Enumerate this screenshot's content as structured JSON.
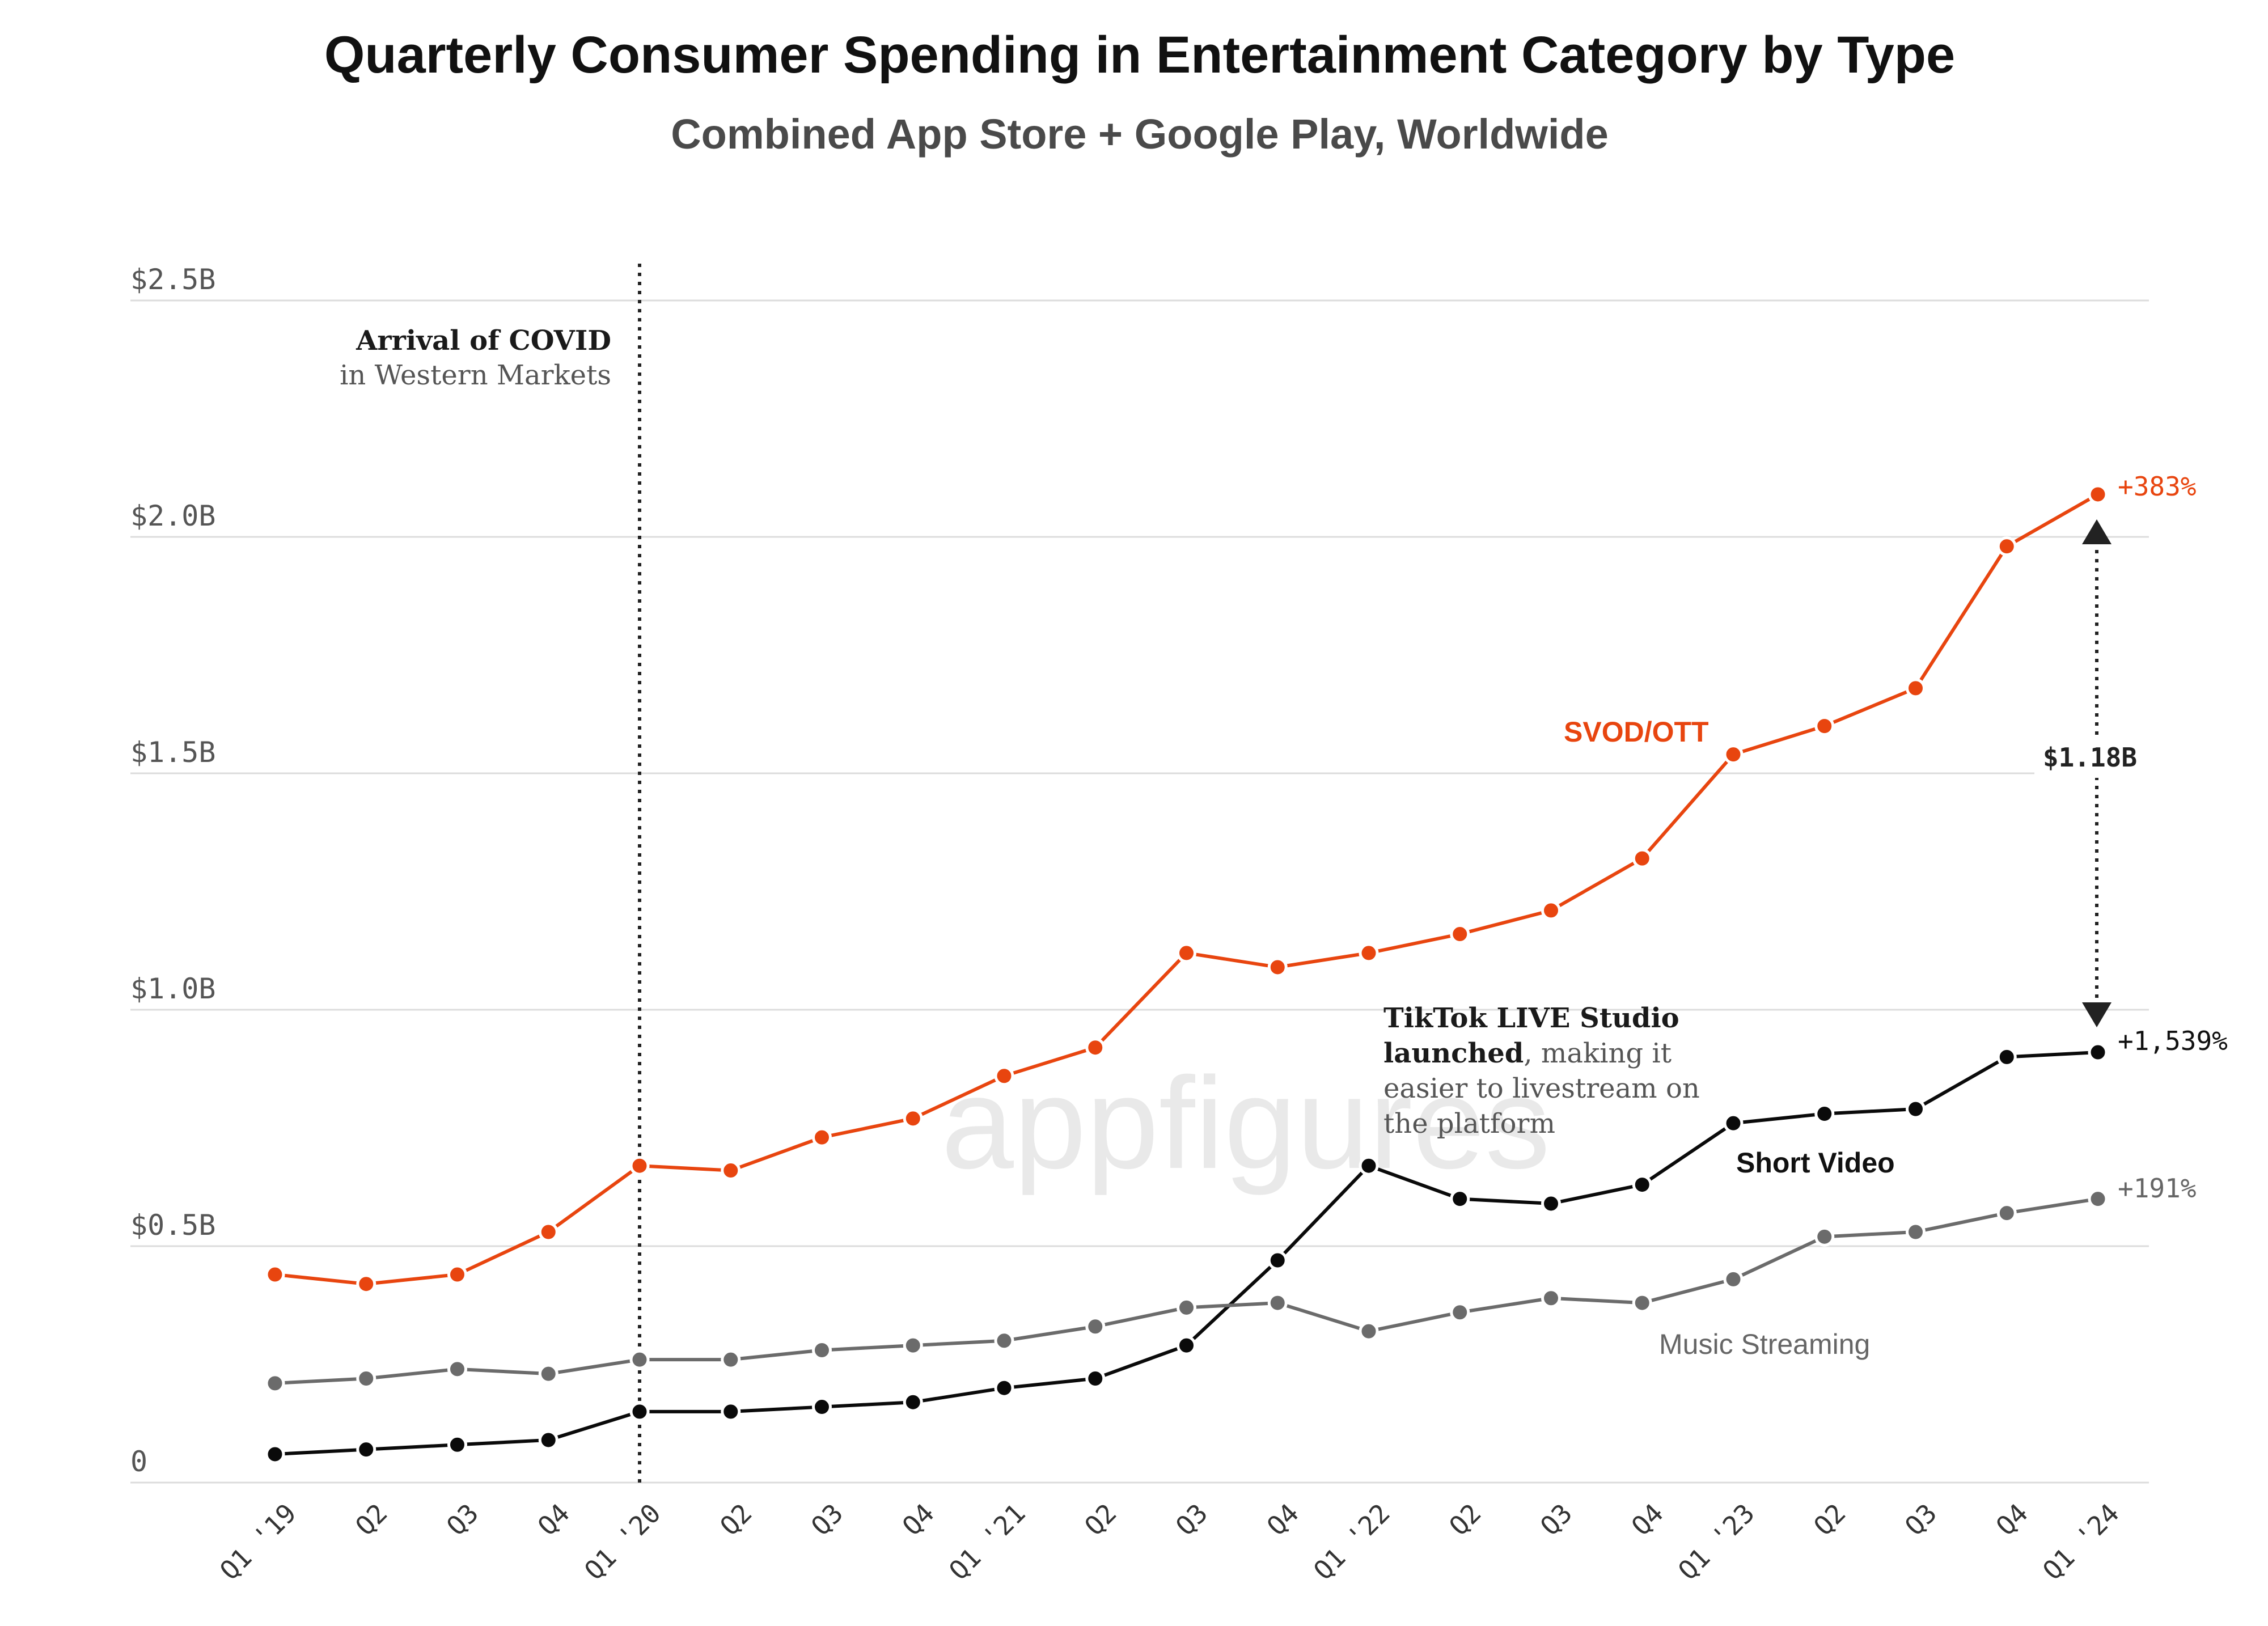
{
  "chart_data": {
    "type": "line",
    "title": "Quarterly Consumer Spending in Entertainment Category by Type",
    "subtitle": "Combined App Store + Google Play, Worldwide",
    "ylim": [
      0,
      2.5
    ],
    "yticks": [
      {
        "value": 0,
        "label": "0"
      },
      {
        "value": 0.5,
        "label": "$0.5B"
      },
      {
        "value": 1.0,
        "label": "$1.0B"
      },
      {
        "value": 1.5,
        "label": "$1.5B"
      },
      {
        "value": 2.0,
        "label": "$2.0B"
      },
      {
        "value": 2.5,
        "label": "$2.5B"
      }
    ],
    "grid": true,
    "categories": [
      "Q1 '19",
      "Q2",
      "Q3",
      "Q4",
      "Q1 '20",
      "Q2",
      "Q3",
      "Q4",
      "Q1 '21",
      "Q2",
      "Q3",
      "Q4",
      "Q1 '22",
      "Q2",
      "Q3",
      "Q4",
      "Q1 '23",
      "Q2",
      "Q3",
      "Q4",
      "Q1 '24"
    ],
    "series": [
      {
        "name": "SVOD/OTT",
        "color": "#e8450f",
        "change_label": "+383%",
        "values": [
          0.44,
          0.42,
          0.44,
          0.53,
          0.67,
          0.66,
          0.73,
          0.77,
          0.86,
          0.92,
          1.12,
          1.09,
          1.12,
          1.16,
          1.21,
          1.32,
          1.54,
          1.6,
          1.68,
          1.98,
          2.09
        ]
      },
      {
        "name": "Short Video",
        "color": "#0a0a0a",
        "change_label": "+1,539%",
        "values": [
          0.06,
          0.07,
          0.08,
          0.09,
          0.15,
          0.15,
          0.16,
          0.17,
          0.2,
          0.22,
          0.29,
          0.47,
          0.67,
          0.6,
          0.59,
          0.63,
          0.76,
          0.78,
          0.79,
          0.9,
          0.91
        ]
      },
      {
        "name": "Music Streaming",
        "color": "#6b6b6b",
        "change_label": "+191%",
        "values": [
          0.21,
          0.22,
          0.24,
          0.23,
          0.26,
          0.26,
          0.28,
          0.29,
          0.3,
          0.33,
          0.37,
          0.38,
          0.32,
          0.36,
          0.39,
          0.38,
          0.43,
          0.52,
          0.53,
          0.57,
          0.6
        ]
      }
    ],
    "annotations": {
      "covid": {
        "category_index": 4,
        "line1": "Arrival of COVID",
        "line2": "in Western Markets"
      },
      "tiktok": {
        "line1": "TikTok LIVE Studio",
        "line2_bold": "launched",
        "line2_rest": ", making it",
        "line3": "easier to livestream on",
        "line4": "the platform"
      },
      "gap": {
        "label": "$1.18B",
        "from_value": 0.91,
        "to_value": 2.09
      }
    },
    "watermark": "appfigures"
  }
}
